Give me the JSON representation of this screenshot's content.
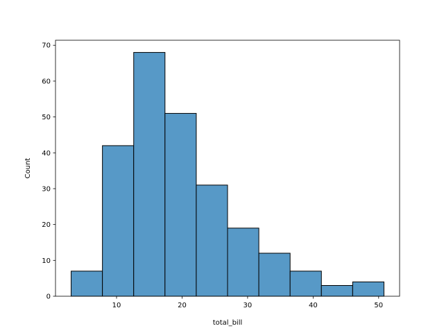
{
  "chart_data": {
    "type": "bar",
    "title": "",
    "xlabel": "total_bill",
    "ylabel": "Count",
    "bin_edges": [
      3.07,
      7.844,
      12.618,
      17.392,
      22.166,
      26.94,
      31.714,
      36.488,
      41.262,
      46.036,
      50.81
    ],
    "values": [
      7,
      42,
      68,
      51,
      31,
      19,
      12,
      7,
      3,
      4
    ],
    "xlim": [
      0.683,
      53.197
    ],
    "ylim": [
      0,
      71.4
    ],
    "xticks": [
      10,
      20,
      30,
      40,
      50
    ],
    "yticks": [
      0,
      10,
      20,
      30,
      40,
      50,
      60,
      70
    ],
    "grid": false,
    "bar_color": "#5799c7",
    "edge_color": "#000000"
  }
}
